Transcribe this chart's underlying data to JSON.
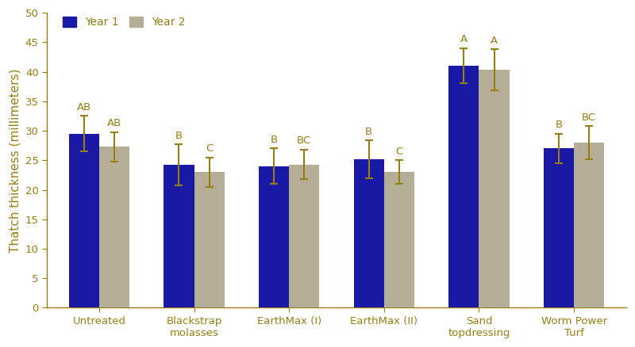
{
  "categories": [
    "Untreated",
    "Blackstrap\nmolasses",
    "EarthMax (I)",
    "EarthMax (II)",
    "Sand\ntopdressing",
    "Worm Power\nTurf"
  ],
  "year1_values": [
    29.5,
    24.2,
    24.0,
    25.2,
    41.0,
    27.0
  ],
  "year2_values": [
    27.3,
    23.0,
    24.3,
    23.0,
    40.3,
    28.0
  ],
  "year1_errors": [
    3.0,
    3.5,
    3.0,
    3.2,
    3.0,
    2.5
  ],
  "year2_errors": [
    2.5,
    2.5,
    2.5,
    2.0,
    3.5,
    2.8
  ],
  "year1_labels": [
    "AB",
    "B",
    "B",
    "B",
    "A",
    "B"
  ],
  "year2_labels": [
    "AB",
    "C",
    "BC",
    "C",
    "A",
    "BC"
  ],
  "bar_color_year1": "#1919a6",
  "bar_color_year2": "#b5ae96",
  "error_color": "#9a7d10",
  "label_color": "#9a7d10",
  "text_color": "#9a7d10",
  "axis_color": "#9a7d10",
  "background_color": "#ffffff",
  "ylabel": "Thatch thickness (millimeters)",
  "ylim": [
    0,
    50
  ],
  "yticks": [
    0,
    5,
    10,
    15,
    20,
    25,
    30,
    35,
    40,
    45,
    50
  ],
  "bar_width": 0.32,
  "legend_year1": "Year 1",
  "legend_year2": "Year 2",
  "label_fontsize": 9.5,
  "tick_fontsize": 9.5,
  "ylabel_fontsize": 11
}
